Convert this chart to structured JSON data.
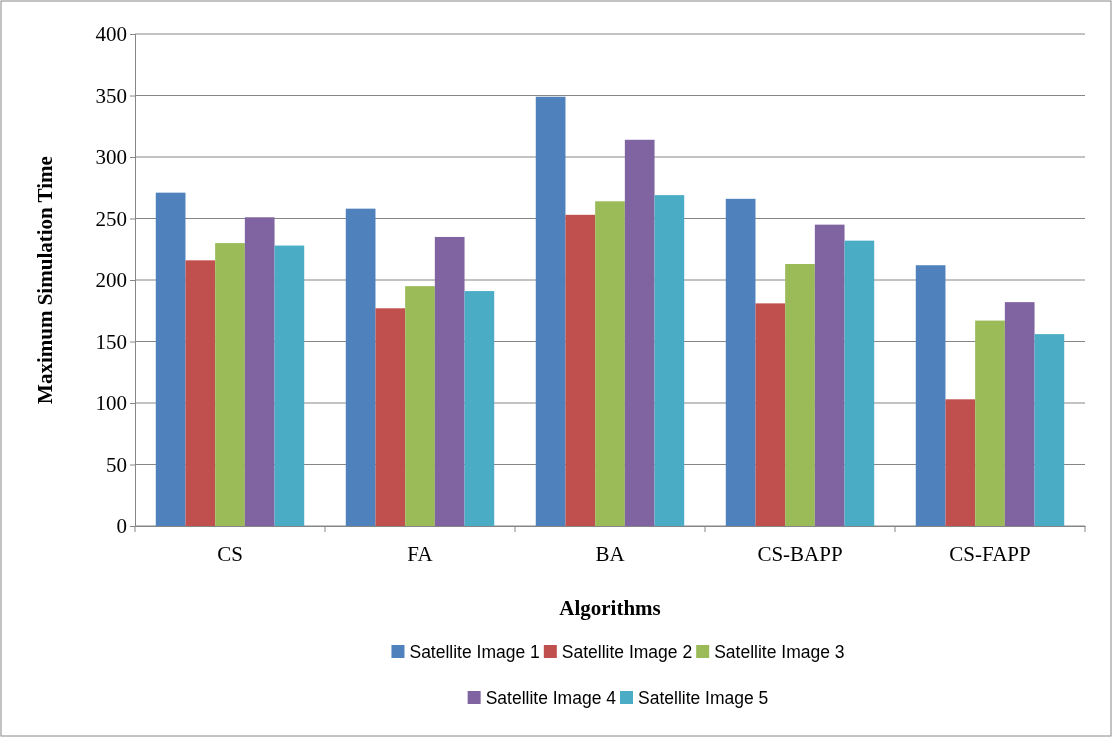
{
  "chart_data": {
    "type": "bar",
    "xlabel": "Algorithms",
    "ylabel": "Maximum Simulation Time",
    "categories": [
      "CS",
      "FA",
      "BA",
      "CS-BAPP",
      "CS-FAPP"
    ],
    "series": [
      {
        "name": "Satellite Image 1",
        "color": "#4f81bd",
        "values": [
          271,
          258,
          349,
          266,
          212
        ]
      },
      {
        "name": "Satellite Image 2",
        "color": "#c0504d",
        "values": [
          216,
          177,
          253,
          181,
          103
        ]
      },
      {
        "name": "Satellite Image 3",
        "color": "#9bbb59",
        "values": [
          230,
          195,
          264,
          213,
          167
        ]
      },
      {
        "name": "Satellite Image 4",
        "color": "#8064a2",
        "values": [
          251,
          235,
          314,
          245,
          182
        ]
      },
      {
        "name": "Satellite Image 5",
        "color": "#4bacc6",
        "values": [
          228,
          191,
          269,
          232,
          156
        ]
      }
    ],
    "ylim": [
      0,
      400
    ],
    "yticks": [
      0,
      50,
      100,
      150,
      200,
      250,
      300,
      350,
      400
    ],
    "grid": "y",
    "legend": "bottom"
  }
}
